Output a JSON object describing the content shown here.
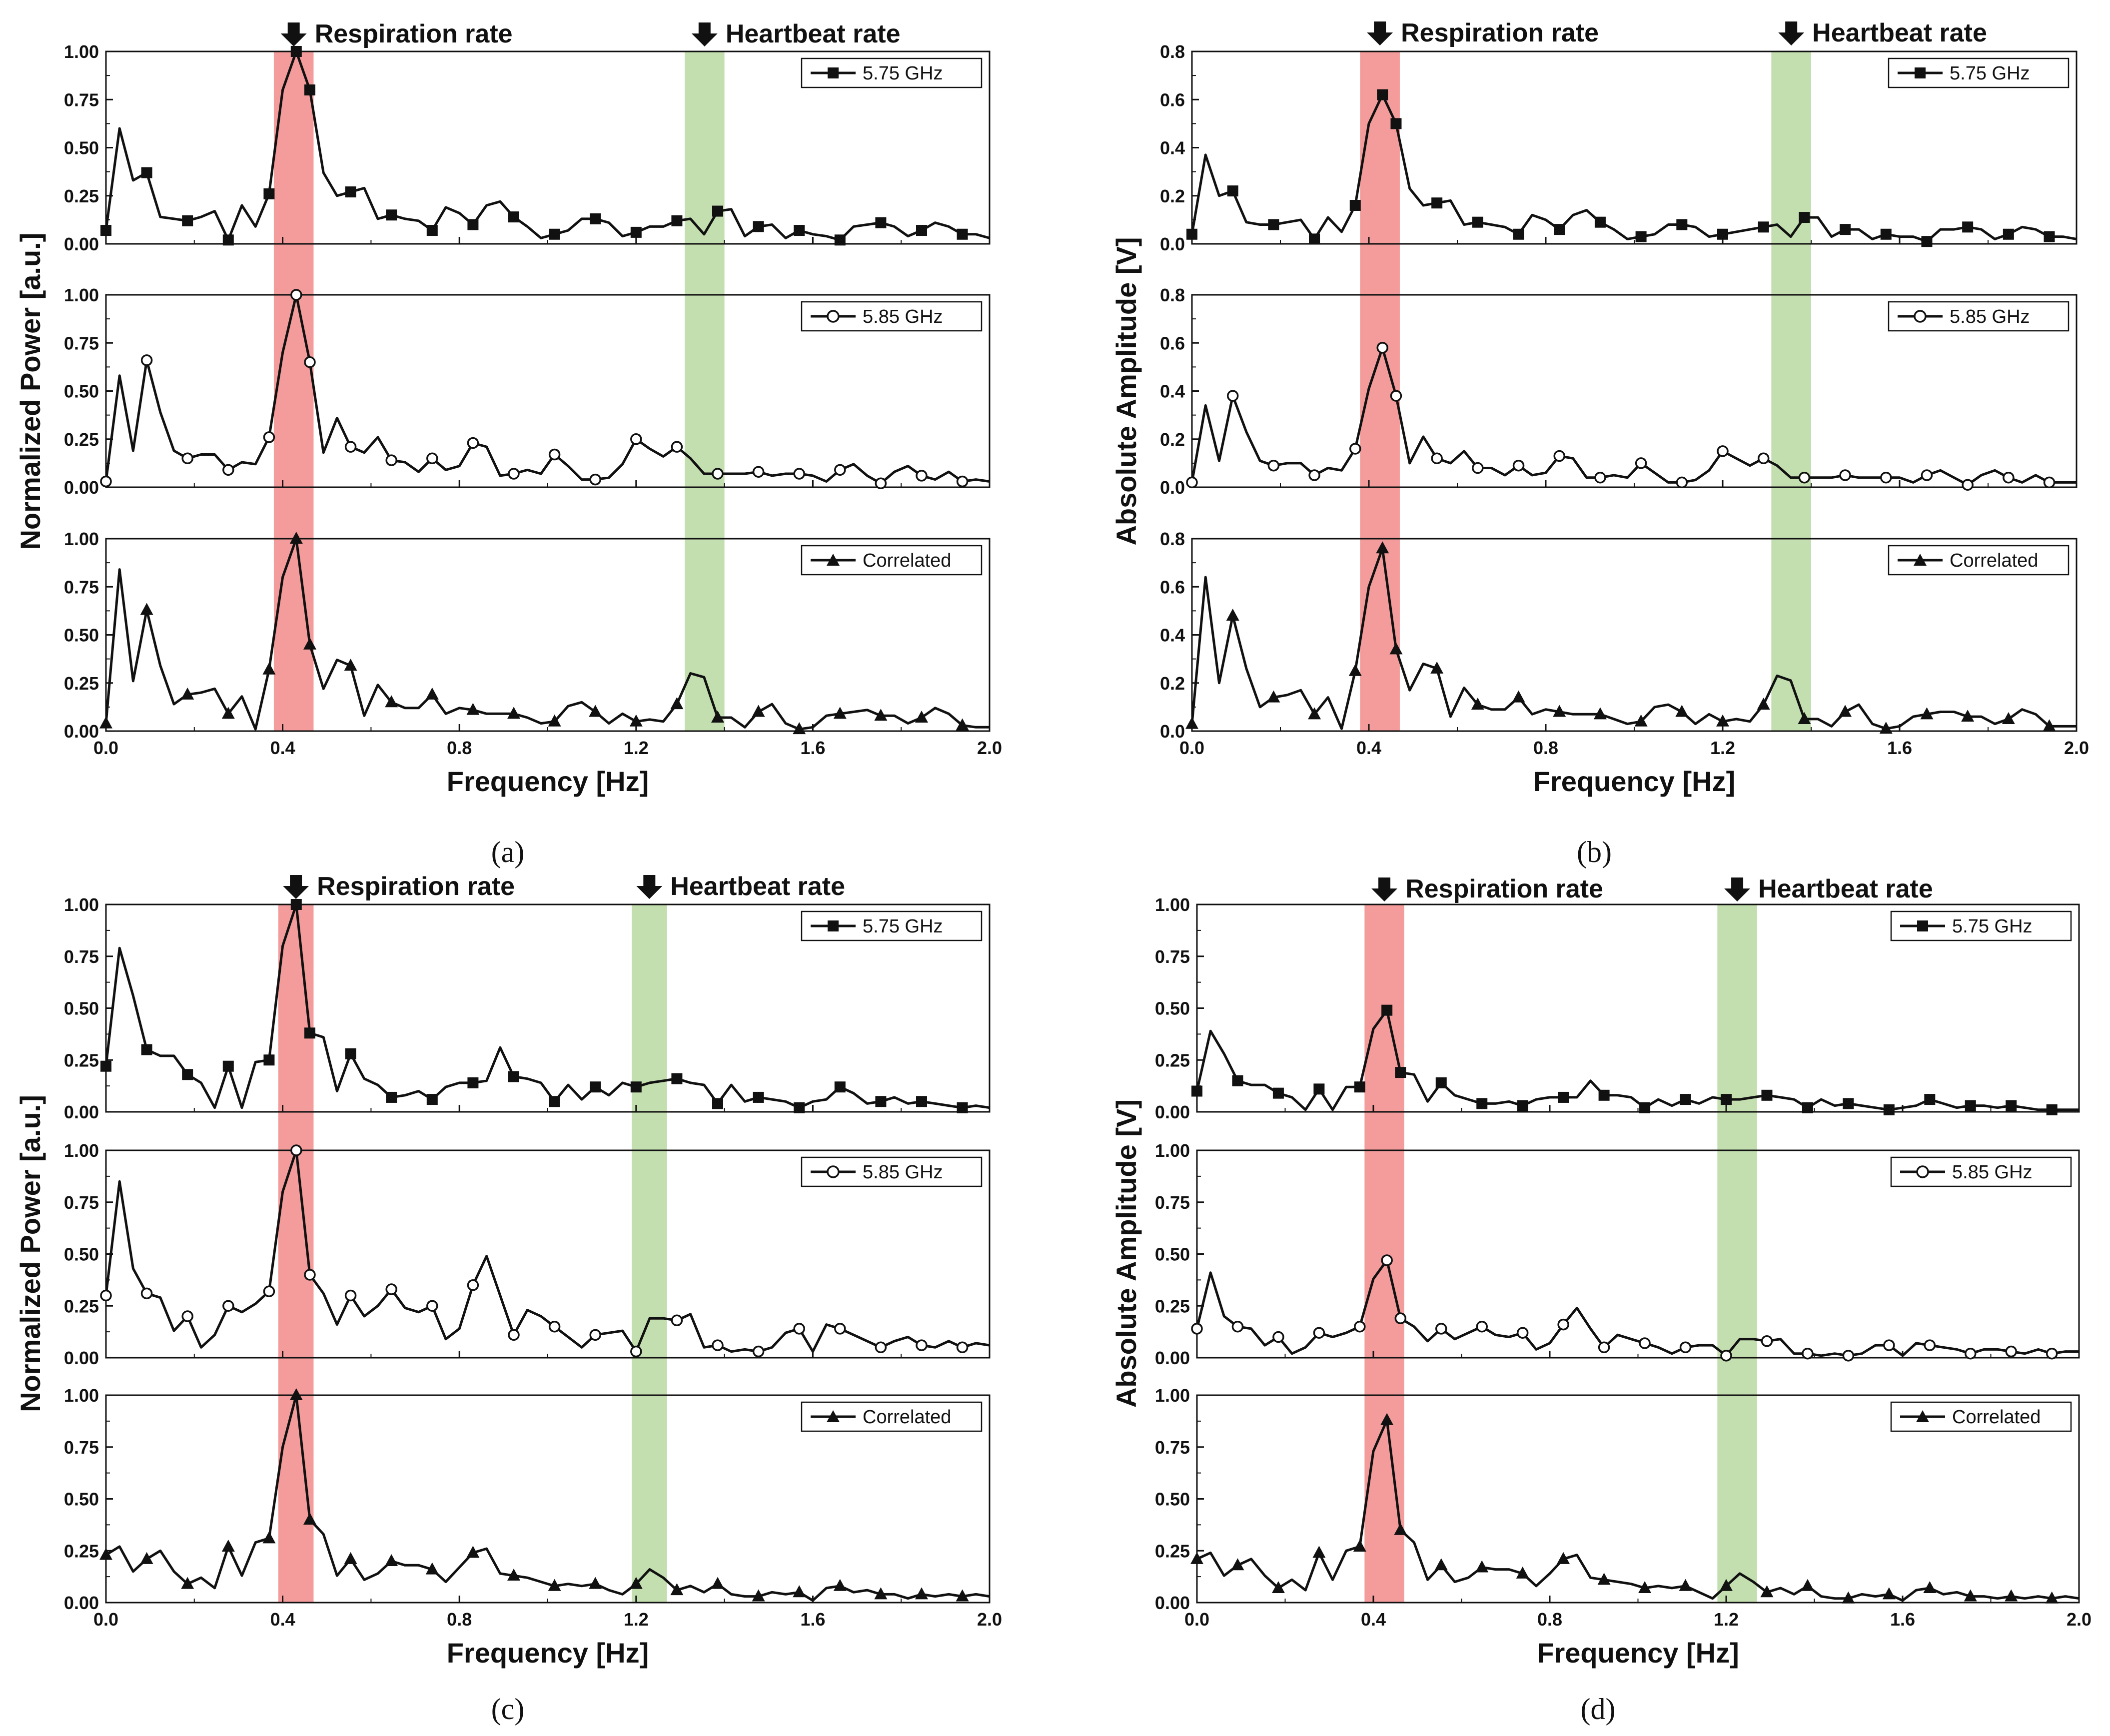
{
  "figure": {
    "x_label": "Frequency [Hz]",
    "colors": {
      "respiration_band": "#f28b8b",
      "heartbeat_band": "#a9d18e",
      "line": "#111111"
    }
  },
  "chart_data": [
    {
      "panel": "a",
      "caption": "(a)",
      "type": "line",
      "ylabel": "Normalized Power [a.u.]",
      "xlabel": "Frequency [Hz]",
      "xlim": [
        0.0,
        2.0
      ],
      "ylim": [
        0.0,
        1.0
      ],
      "xticks": [
        "0.0",
        "0.4",
        "0.8",
        "1.2",
        "1.6",
        "2.0"
      ],
      "yticks": [
        "0.00",
        "0.25",
        "0.50",
        "0.75",
        "1.00"
      ],
      "annotations": {
        "respiration": {
          "label": "Respiration rate",
          "band": [
            0.38,
            0.47
          ]
        },
        "heartbeat": {
          "label": "Heartbeat rate",
          "band": [
            1.31,
            1.4
          ]
        }
      },
      "series": [
        {
          "name": "5.75 GHz",
          "marker": "square",
          "y": [
            0.07,
            0.6,
            0.33,
            0.37,
            0.14,
            0.13,
            0.12,
            0.14,
            0.17,
            0.02,
            0.2,
            0.09,
            0.26,
            0.8,
            1.0,
            0.8,
            0.37,
            0.25,
            0.27,
            0.29,
            0.13,
            0.15,
            0.13,
            0.12,
            0.07,
            0.19,
            0.16,
            0.1,
            0.2,
            0.22,
            0.14,
            0.09,
            0.03,
            0.05,
            0.07,
            0.13,
            0.13,
            0.11,
            0.04,
            0.06,
            0.09,
            0.09,
            0.12,
            0.13,
            0.05,
            0.17,
            0.18,
            0.04,
            0.09,
            0.1,
            0.03,
            0.07,
            0.05,
            0.04,
            0.02,
            0.09,
            0.1,
            0.11,
            0.09,
            0.04,
            0.07,
            0.11,
            0.09,
            0.05,
            0.05,
            0.03
          ]
        },
        {
          "name": "5.85 GHz",
          "marker": "circle",
          "y": [
            0.03,
            0.58,
            0.19,
            0.66,
            0.39,
            0.19,
            0.15,
            0.17,
            0.17,
            0.09,
            0.13,
            0.12,
            0.26,
            0.7,
            1.0,
            0.65,
            0.18,
            0.36,
            0.21,
            0.18,
            0.26,
            0.14,
            0.13,
            0.08,
            0.15,
            0.09,
            0.11,
            0.23,
            0.21,
            0.06,
            0.07,
            0.09,
            0.07,
            0.17,
            0.11,
            0.04,
            0.04,
            0.05,
            0.12,
            0.25,
            0.2,
            0.16,
            0.21,
            0.15,
            0.07,
            0.07,
            0.07,
            0.07,
            0.08,
            0.06,
            0.07,
            0.07,
            0.06,
            0.03,
            0.09,
            0.12,
            0.06,
            0.02,
            0.08,
            0.11,
            0.06,
            0.04,
            0.08,
            0.03,
            0.04,
            0.03
          ]
        },
        {
          "name": "Correlated",
          "marker": "triangle",
          "y": [
            0.04,
            0.84,
            0.26,
            0.63,
            0.34,
            0.14,
            0.19,
            0.2,
            0.22,
            0.09,
            0.18,
            0.01,
            0.32,
            0.8,
            1.0,
            0.45,
            0.22,
            0.37,
            0.34,
            0.08,
            0.24,
            0.15,
            0.12,
            0.12,
            0.19,
            0.09,
            0.12,
            0.11,
            0.09,
            0.09,
            0.09,
            0.07,
            0.04,
            0.05,
            0.13,
            0.15,
            0.1,
            0.04,
            0.09,
            0.05,
            0.06,
            0.05,
            0.14,
            0.3,
            0.28,
            0.07,
            0.07,
            0.02,
            0.1,
            0.14,
            0.04,
            0.01,
            0.02,
            0.08,
            0.09,
            0.1,
            0.11,
            0.08,
            0.08,
            0.04,
            0.07,
            0.12,
            0.09,
            0.03,
            0.02,
            0.02
          ]
        }
      ]
    },
    {
      "panel": "b",
      "caption": "(b)",
      "type": "line",
      "ylabel": "Absolute Amplitude [V]",
      "xlabel": "Frequency [Hz]",
      "xlim": [
        0.0,
        2.0
      ],
      "ylim": [
        0.0,
        0.8
      ],
      "xticks": [
        "0.0",
        "0.4",
        "0.8",
        "1.2",
        "1.6",
        "2.0"
      ],
      "yticks": [
        "0.0",
        "0.2",
        "0.4",
        "0.6",
        "0.8"
      ],
      "annotations": {
        "respiration": {
          "label": "Respiration rate",
          "band": [
            0.38,
            0.47
          ]
        },
        "heartbeat": {
          "label": "Heartbeat rate",
          "band": [
            1.31,
            1.4
          ]
        }
      },
      "series": [
        {
          "name": "5.75 GHz",
          "marker": "square",
          "y": [
            0.04,
            0.37,
            0.2,
            0.22,
            0.09,
            0.08,
            0.08,
            0.09,
            0.1,
            0.02,
            0.11,
            0.05,
            0.16,
            0.5,
            0.62,
            0.5,
            0.23,
            0.16,
            0.17,
            0.18,
            0.08,
            0.09,
            0.08,
            0.07,
            0.04,
            0.12,
            0.1,
            0.06,
            0.12,
            0.14,
            0.09,
            0.06,
            0.02,
            0.03,
            0.04,
            0.08,
            0.08,
            0.07,
            0.03,
            0.04,
            0.05,
            0.06,
            0.07,
            0.08,
            0.03,
            0.11,
            0.11,
            0.03,
            0.06,
            0.06,
            0.02,
            0.04,
            0.03,
            0.03,
            0.01,
            0.06,
            0.06,
            0.07,
            0.06,
            0.02,
            0.04,
            0.07,
            0.06,
            0.03,
            0.03,
            0.02
          ]
        },
        {
          "name": "5.85 GHz",
          "marker": "circle",
          "y": [
            0.02,
            0.34,
            0.11,
            0.38,
            0.23,
            0.11,
            0.09,
            0.1,
            0.1,
            0.05,
            0.08,
            0.07,
            0.16,
            0.41,
            0.58,
            0.38,
            0.1,
            0.21,
            0.12,
            0.1,
            0.15,
            0.08,
            0.08,
            0.05,
            0.09,
            0.05,
            0.06,
            0.13,
            0.12,
            0.04,
            0.04,
            0.05,
            0.04,
            0.1,
            0.06,
            0.02,
            0.02,
            0.03,
            0.07,
            0.15,
            0.12,
            0.09,
            0.12,
            0.09,
            0.04,
            0.04,
            0.04,
            0.04,
            0.05,
            0.04,
            0.04,
            0.04,
            0.04,
            0.02,
            0.05,
            0.07,
            0.04,
            0.01,
            0.05,
            0.07,
            0.04,
            0.02,
            0.05,
            0.02,
            0.02,
            0.02
          ]
        },
        {
          "name": "Correlated",
          "marker": "triangle",
          "y": [
            0.03,
            0.64,
            0.2,
            0.48,
            0.26,
            0.1,
            0.14,
            0.15,
            0.17,
            0.07,
            0.14,
            0.01,
            0.25,
            0.6,
            0.76,
            0.34,
            0.17,
            0.28,
            0.26,
            0.06,
            0.18,
            0.11,
            0.09,
            0.09,
            0.14,
            0.07,
            0.09,
            0.08,
            0.07,
            0.07,
            0.07,
            0.05,
            0.03,
            0.04,
            0.1,
            0.11,
            0.08,
            0.03,
            0.07,
            0.04,
            0.05,
            0.04,
            0.11,
            0.23,
            0.21,
            0.05,
            0.05,
            0.02,
            0.08,
            0.11,
            0.03,
            0.01,
            0.02,
            0.06,
            0.07,
            0.08,
            0.08,
            0.06,
            0.06,
            0.03,
            0.05,
            0.09,
            0.07,
            0.02,
            0.02,
            0.02
          ]
        }
      ]
    },
    {
      "panel": "c",
      "caption": "(c)",
      "type": "line",
      "ylabel": "Normalized Power [a.u.]",
      "xlabel": "Frequency [Hz]",
      "xlim": [
        0.0,
        2.0
      ],
      "ylim": [
        0.0,
        1.0
      ],
      "xticks": [
        "0.0",
        "0.4",
        "0.8",
        "1.2",
        "1.6",
        "2.0"
      ],
      "yticks": [
        "0.00",
        "0.25",
        "0.50",
        "0.75",
        "1.00"
      ],
      "annotations": {
        "respiration": {
          "label": "Respiration rate",
          "band": [
            0.39,
            0.47
          ]
        },
        "heartbeat": {
          "label": "Heartbeat rate",
          "band": [
            1.19,
            1.27
          ]
        }
      },
      "series": [
        {
          "name": "5.75 GHz",
          "marker": "square",
          "y": [
            0.22,
            0.79,
            0.56,
            0.3,
            0.27,
            0.27,
            0.18,
            0.14,
            0.02,
            0.22,
            0.02,
            0.24,
            0.25,
            0.8,
            1.0,
            0.38,
            0.36,
            0.1,
            0.28,
            0.16,
            0.13,
            0.07,
            0.08,
            0.1,
            0.06,
            0.12,
            0.14,
            0.14,
            0.15,
            0.31,
            0.17,
            0.16,
            0.14,
            0.05,
            0.13,
            0.06,
            0.12,
            0.08,
            0.14,
            0.12,
            0.14,
            0.15,
            0.16,
            0.14,
            0.13,
            0.04,
            0.13,
            0.05,
            0.07,
            0.06,
            0.05,
            0.02,
            0.05,
            0.06,
            0.12,
            0.09,
            0.04,
            0.05,
            0.07,
            0.04,
            0.05,
            0.04,
            0.03,
            0.02,
            0.03,
            0.02
          ]
        },
        {
          "name": "5.85 GHz",
          "marker": "circle",
          "y": [
            0.3,
            0.85,
            0.43,
            0.31,
            0.29,
            0.13,
            0.2,
            0.05,
            0.11,
            0.25,
            0.22,
            0.26,
            0.32,
            0.8,
            1.0,
            0.4,
            0.31,
            0.16,
            0.3,
            0.2,
            0.25,
            0.33,
            0.24,
            0.22,
            0.25,
            0.09,
            0.14,
            0.35,
            0.49,
            0.3,
            0.11,
            0.23,
            0.2,
            0.15,
            0.1,
            0.05,
            0.11,
            0.12,
            0.13,
            0.03,
            0.19,
            0.19,
            0.18,
            0.21,
            0.05,
            0.06,
            0.03,
            0.04,
            0.03,
            0.05,
            0.12,
            0.14,
            0.03,
            0.16,
            0.14,
            0.11,
            0.08,
            0.05,
            0.08,
            0.1,
            0.06,
            0.05,
            0.08,
            0.05,
            0.07,
            0.06
          ]
        },
        {
          "name": "Correlated",
          "marker": "triangle",
          "y": [
            0.23,
            0.27,
            0.15,
            0.21,
            0.25,
            0.15,
            0.09,
            0.12,
            0.07,
            0.27,
            0.13,
            0.29,
            0.31,
            0.75,
            1.0,
            0.4,
            0.33,
            0.13,
            0.21,
            0.11,
            0.14,
            0.2,
            0.18,
            0.18,
            0.16,
            0.1,
            0.17,
            0.24,
            0.26,
            0.14,
            0.13,
            0.12,
            0.1,
            0.08,
            0.09,
            0.08,
            0.09,
            0.06,
            0.04,
            0.09,
            0.16,
            0.12,
            0.06,
            0.08,
            0.05,
            0.09,
            0.04,
            0.03,
            0.03,
            0.05,
            0.04,
            0.05,
            0.01,
            0.07,
            0.08,
            0.05,
            0.06,
            0.04,
            0.04,
            0.02,
            0.04,
            0.03,
            0.04,
            0.03,
            0.04,
            0.03
          ]
        }
      ]
    },
    {
      "panel": "d",
      "caption": "(d)",
      "type": "line",
      "ylabel": "Absolute Amplitude [V]",
      "xlabel": "Frequency [Hz]",
      "xlim": [
        0.0,
        2.0
      ],
      "ylim": [
        0.0,
        1.0
      ],
      "xticks": [
        "0.0",
        "0.4",
        "0.8",
        "1.2",
        "1.6",
        "2.0"
      ],
      "yticks": [
        "0.00",
        "0.25",
        "0.50",
        "0.75",
        "1.00"
      ],
      "annotations": {
        "respiration": {
          "label": "Respiration rate",
          "band": [
            0.38,
            0.47
          ]
        },
        "heartbeat": {
          "label": "Heartbeat rate",
          "band": [
            1.18,
            1.27
          ]
        }
      },
      "series": [
        {
          "name": "5.75 GHz",
          "marker": "square",
          "y": [
            0.1,
            0.39,
            0.28,
            0.15,
            0.13,
            0.13,
            0.09,
            0.07,
            0.01,
            0.11,
            0.01,
            0.12,
            0.12,
            0.4,
            0.49,
            0.19,
            0.18,
            0.05,
            0.14,
            0.08,
            0.06,
            0.04,
            0.04,
            0.05,
            0.03,
            0.06,
            0.07,
            0.07,
            0.07,
            0.15,
            0.08,
            0.08,
            0.07,
            0.02,
            0.06,
            0.03,
            0.06,
            0.04,
            0.07,
            0.06,
            0.06,
            0.07,
            0.08,
            0.07,
            0.06,
            0.02,
            0.06,
            0.03,
            0.04,
            0.03,
            0.02,
            0.01,
            0.02,
            0.03,
            0.06,
            0.04,
            0.02,
            0.03,
            0.03,
            0.02,
            0.03,
            0.02,
            0.01,
            0.01,
            0.01,
            0.01
          ]
        },
        {
          "name": "5.85 GHz",
          "marker": "circle",
          "y": [
            0.14,
            0.41,
            0.2,
            0.15,
            0.14,
            0.06,
            0.1,
            0.02,
            0.05,
            0.12,
            0.1,
            0.12,
            0.15,
            0.38,
            0.47,
            0.19,
            0.15,
            0.08,
            0.14,
            0.09,
            0.12,
            0.15,
            0.11,
            0.1,
            0.12,
            0.04,
            0.07,
            0.16,
            0.24,
            0.14,
            0.05,
            0.11,
            0.09,
            0.07,
            0.05,
            0.02,
            0.05,
            0.06,
            0.06,
            0.01,
            0.09,
            0.09,
            0.08,
            0.09,
            0.02,
            0.02,
            0.01,
            0.02,
            0.01,
            0.02,
            0.06,
            0.06,
            0.01,
            0.07,
            0.06,
            0.05,
            0.04,
            0.02,
            0.04,
            0.04,
            0.03,
            0.02,
            0.04,
            0.02,
            0.03,
            0.03
          ]
        },
        {
          "name": "Correlated",
          "marker": "triangle",
          "y": [
            0.21,
            0.24,
            0.13,
            0.18,
            0.21,
            0.13,
            0.07,
            0.11,
            0.06,
            0.24,
            0.11,
            0.25,
            0.27,
            0.73,
            0.88,
            0.35,
            0.29,
            0.11,
            0.18,
            0.1,
            0.12,
            0.17,
            0.16,
            0.16,
            0.14,
            0.08,
            0.14,
            0.21,
            0.23,
            0.12,
            0.11,
            0.1,
            0.09,
            0.07,
            0.08,
            0.07,
            0.08,
            0.05,
            0.02,
            0.08,
            0.14,
            0.1,
            0.05,
            0.07,
            0.04,
            0.08,
            0.03,
            0.02,
            0.02,
            0.04,
            0.03,
            0.04,
            0.01,
            0.06,
            0.07,
            0.04,
            0.05,
            0.03,
            0.03,
            0.02,
            0.03,
            0.02,
            0.03,
            0.02,
            0.03,
            0.02
          ]
        }
      ]
    }
  ]
}
